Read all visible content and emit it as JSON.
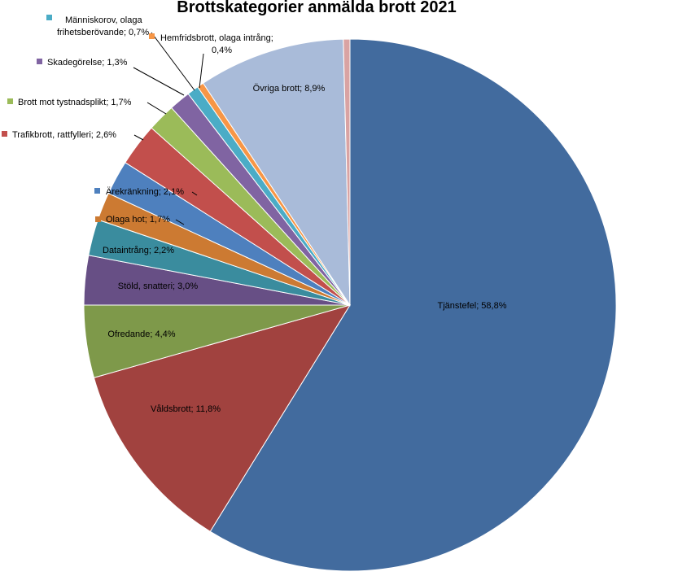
{
  "chart_data": {
    "type": "pie",
    "title": "Brottskategorier anmälda brott 2021",
    "slices": [
      {
        "label": "Tjänstefel",
        "value": 58.8,
        "text": "Tjänstefel; 58,8%",
        "color": "#426B9E"
      },
      {
        "label": "Våldsbrott",
        "value": 11.8,
        "text": "Våldsbrott; 11,8%",
        "color": "#A1423F"
      },
      {
        "label": "Ofredande",
        "value": 4.4,
        "text": "Ofredande; 4,4%",
        "color": "#7E994A"
      },
      {
        "label": "Stöld, snatteri",
        "value": 3.0,
        "text": "Stöld, snatteri; 3,0%",
        "color": "#674F85"
      },
      {
        "label": "Dataintrång",
        "value": 2.2,
        "text": "Dataintrång; 2,2%",
        "color": "#3A8C9E"
      },
      {
        "label": "Olaga hot",
        "value": 1.7,
        "text": "Olaga hot; 1,7%",
        "color": "#CC7A32"
      },
      {
        "label": "Ärekränkning",
        "value": 2.1,
        "text": "Ärekränkning; 2,1%",
        "color": "#4E80BE"
      },
      {
        "label": "Trafikbrott, rattfylleri",
        "value": 2.6,
        "text": "Trafikbrott, rattfylleri; 2,6%",
        "color": "#C24F4C"
      },
      {
        "label": "Brott mot tystnadsplikt",
        "value": 1.7,
        "text": "Brott mot tystnadsplikt; 1,7%",
        "color": "#9BBB59"
      },
      {
        "label": "Skadegörelse",
        "value": 1.3,
        "text": "Skadegörelse; 1,3%",
        "color": "#8064A2"
      },
      {
        "label": "Människorov, olaga frihetsberövande",
        "value": 0.7,
        "text": "Människorov, olaga frihetsberövande; 0,7%",
        "color": "#4BACC6"
      },
      {
        "label": "Hemfridsbrott, olaga intrång",
        "value": 0.4,
        "text": "Hemfridsbrott, olaga intrång; 0,4%",
        "color": "#F79646"
      },
      {
        "label": "Övriga brott",
        "value": 8.9,
        "text": "Övriga brott; 8,9%",
        "color": "#A9BBD9"
      },
      {
        "label": "",
        "value": 0.4,
        "text": "",
        "color": "#D9A3A3"
      }
    ]
  }
}
